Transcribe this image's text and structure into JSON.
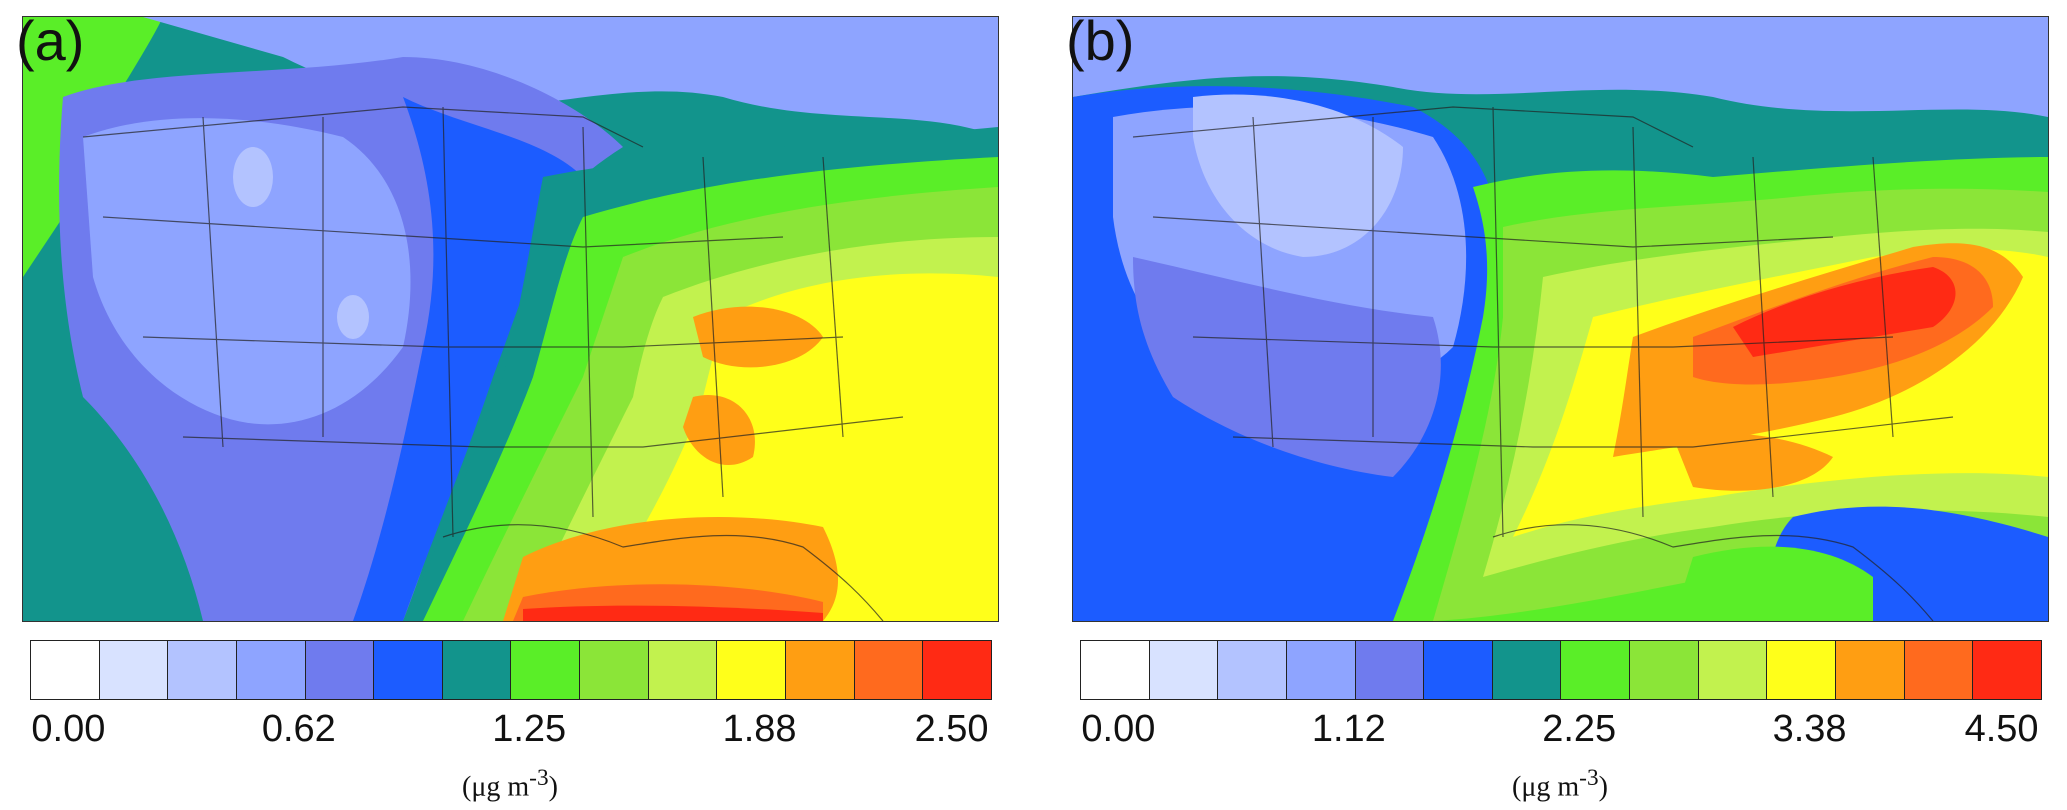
{
  "panels": [
    {
      "label": "(a)",
      "ticks": [
        "0.00",
        "0.62",
        "1.25",
        "1.88",
        "2.50"
      ],
      "units_base": "(μg m",
      "units_sup": "-3",
      "units_end": ")",
      "colorbar": [
        "#ffffff",
        "#d8e2ff",
        "#b3c3ff",
        "#8ea4ff",
        "#6f7bee",
        "#1c5cff",
        "#12948c",
        "#5aee28",
        "#8be538",
        "#c2f24e",
        "#ffff1a",
        "#ff9e12",
        "#ff6a1e",
        "#ff2a14"
      ]
    },
    {
      "label": "(b)",
      "ticks": [
        "0.00",
        "1.12",
        "2.25",
        "3.38",
        "4.50"
      ],
      "units_base": "(μg m",
      "units_sup": "-3",
      "units_end": ")",
      "colorbar": [
        "#ffffff",
        "#d8e2ff",
        "#b3c3ff",
        "#8ea4ff",
        "#6f7bee",
        "#1c5cff",
        "#12948c",
        "#5aee28",
        "#8be538",
        "#c2f24e",
        "#ffff1a",
        "#ff9e12",
        "#ff6a1e",
        "#ff2a14"
      ]
    }
  ]
}
